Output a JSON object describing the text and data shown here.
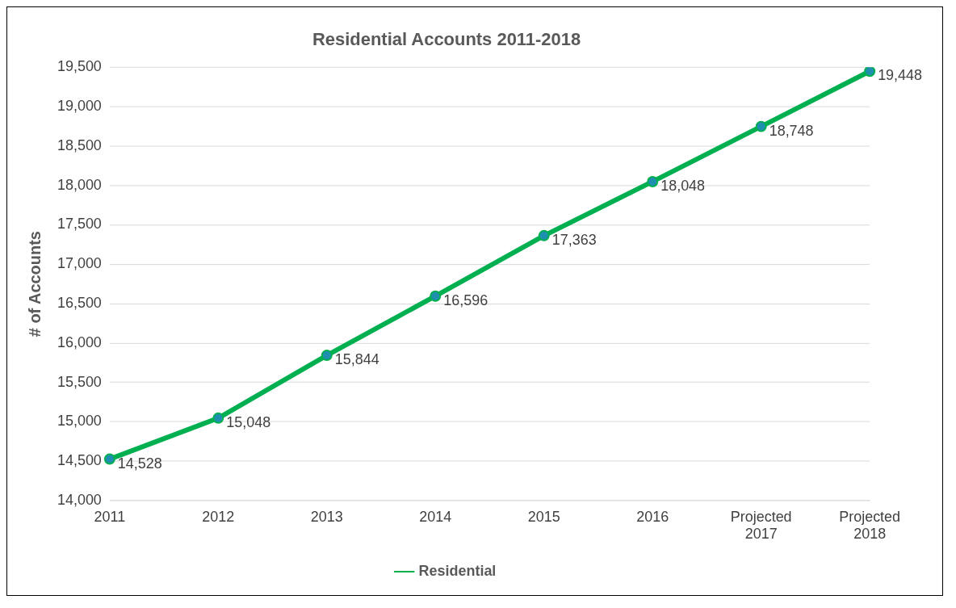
{
  "chart_data": {
    "type": "line",
    "title": "Residential Accounts 2011-2018",
    "ylabel": "# of Accounts",
    "categories": [
      "2011",
      "2012",
      "2013",
      "2014",
      "2015",
      "2016",
      "Projected 2017",
      "Projected 2018"
    ],
    "series": [
      {
        "name": "Residential",
        "color": "#00b050",
        "values": [
          14528,
          15048,
          15844,
          16596,
          17363,
          18048,
          18748,
          19448
        ],
        "value_labels": [
          "14,528",
          "15,048",
          "15,844",
          "16,596",
          "17,363",
          "18,048",
          "18,748",
          "19,448"
        ]
      }
    ],
    "ylim": [
      14000,
      19500
    ],
    "yticks": [
      {
        "value": 14000,
        "label": "14,000"
      },
      {
        "value": 14500,
        "label": "14,500"
      },
      {
        "value": 15000,
        "label": "15,000"
      },
      {
        "value": 15500,
        "label": "15,500"
      },
      {
        "value": 16000,
        "label": "16,000"
      },
      {
        "value": 16500,
        "label": "16,500"
      },
      {
        "value": 17000,
        "label": "17,000"
      },
      {
        "value": 17500,
        "label": "17,500"
      },
      {
        "value": 18000,
        "label": "18,000"
      },
      {
        "value": 18500,
        "label": "18,500"
      },
      {
        "value": 19000,
        "label": "19,000"
      },
      {
        "value": 19500,
        "label": "19,500"
      }
    ],
    "grid": "y",
    "legend": "bottom",
    "marker": "circle",
    "line_style": "solid"
  }
}
